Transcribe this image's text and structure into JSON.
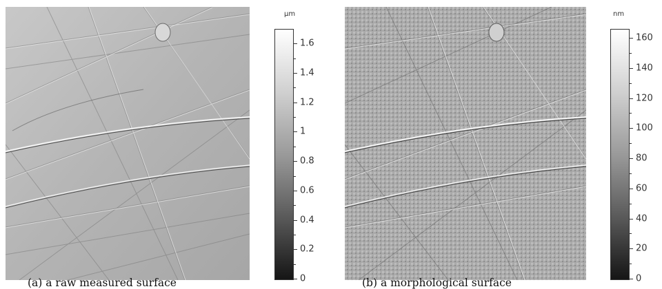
{
  "figure": {
    "panel_a": {
      "caption": "(a) a raw measured surface",
      "colorbar": {
        "unit": "μm",
        "tick_labels": [
          "0",
          "0.2",
          "0.4",
          "0.6",
          "0.8",
          "1",
          "1.2",
          "1.4",
          "1.6"
        ],
        "ticks": [
          0,
          0.2,
          0.4,
          0.6,
          0.8,
          1.0,
          1.2,
          1.4,
          1.6
        ],
        "range": [
          0,
          1.7
        ],
        "colormap": [
          "#151515",
          "#ffffff"
        ]
      }
    },
    "panel_b": {
      "caption": "(b) a morphological surface",
      "colorbar": {
        "unit": "nm",
        "tick_labels": [
          "0",
          "20",
          "40",
          "60",
          "80",
          "100",
          "120",
          "140",
          "160"
        ],
        "ticks": [
          0,
          20,
          40,
          60,
          80,
          100,
          120,
          140,
          160
        ],
        "range": [
          0,
          166
        ],
        "colormap": [
          "#151515",
          "#ffffff"
        ]
      }
    }
  }
}
